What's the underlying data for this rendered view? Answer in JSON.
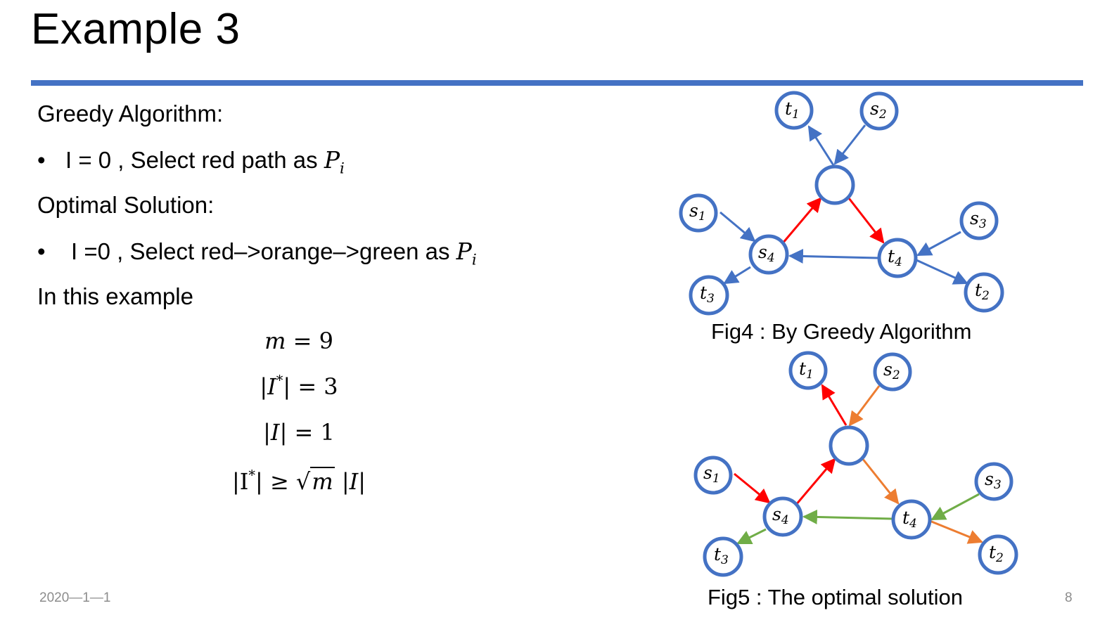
{
  "title": "Example 3",
  "accent_color": "#4472C4",
  "content": {
    "greedy_heading": "Greedy Algorithm:",
    "greedy_bullet": {
      "marker": "•",
      "text": "I = 0 , Select red path as ",
      "math_var": "P",
      "math_sub": "i"
    },
    "optimal_heading": "Optimal Solution:",
    "optimal_bullet": {
      "marker": "•",
      "text": "I =0 , Select red–>orange–>green as ",
      "math_var": "P",
      "math_sub": "i"
    },
    "example_heading": "In this example",
    "formulas": {
      "f1": {
        "lhs": "m",
        "rhs": "= 9"
      },
      "f2": {
        "lhs": "|I",
        "sup": "*",
        "rhs": "| = 3"
      },
      "f3": {
        "lhs": "|I|",
        "rhs": "= 1"
      },
      "f4": {
        "lhs": "|I",
        "sup": "*",
        "mid": "| ≥ ",
        "radicand": "m",
        "rhs": "|I|"
      }
    }
  },
  "figures": {
    "fig4": {
      "caption": "Fig4 : By Greedy Algorithm",
      "edge_colors": [
        "#4472C4",
        "#FF0000"
      ],
      "nodes": {
        "t1": {
          "v": "t",
          "s": "1"
        },
        "s2": {
          "v": "s",
          "s": "2"
        },
        "center": {
          "v": "",
          "s": ""
        },
        "s1": {
          "v": "s",
          "s": "1"
        },
        "s3": {
          "v": "s",
          "s": "3"
        },
        "s4": {
          "v": "s",
          "s": "4"
        },
        "t4": {
          "v": "t",
          "s": "4"
        },
        "t3": {
          "v": "t",
          "s": "3"
        },
        "t2": {
          "v": "t",
          "s": "2"
        }
      }
    },
    "fig5": {
      "caption": "Fig5 : The optimal solution",
      "edge_colors": [
        "#FF0000",
        "#ED7D31",
        "#70AD47"
      ],
      "nodes": {
        "t1": {
          "v": "t",
          "s": "1"
        },
        "s2": {
          "v": "s",
          "s": "2"
        },
        "center": {
          "v": "",
          "s": ""
        },
        "s1": {
          "v": "s",
          "s": "1"
        },
        "s3": {
          "v": "s",
          "s": "3"
        },
        "s4": {
          "v": "s",
          "s": "4"
        },
        "t4": {
          "v": "t",
          "s": "4"
        },
        "t3": {
          "v": "t",
          "s": "3"
        },
        "t2": {
          "v": "t",
          "s": "2"
        }
      }
    }
  },
  "footer": {
    "date": "2020—1—1",
    "page_number": "8"
  }
}
